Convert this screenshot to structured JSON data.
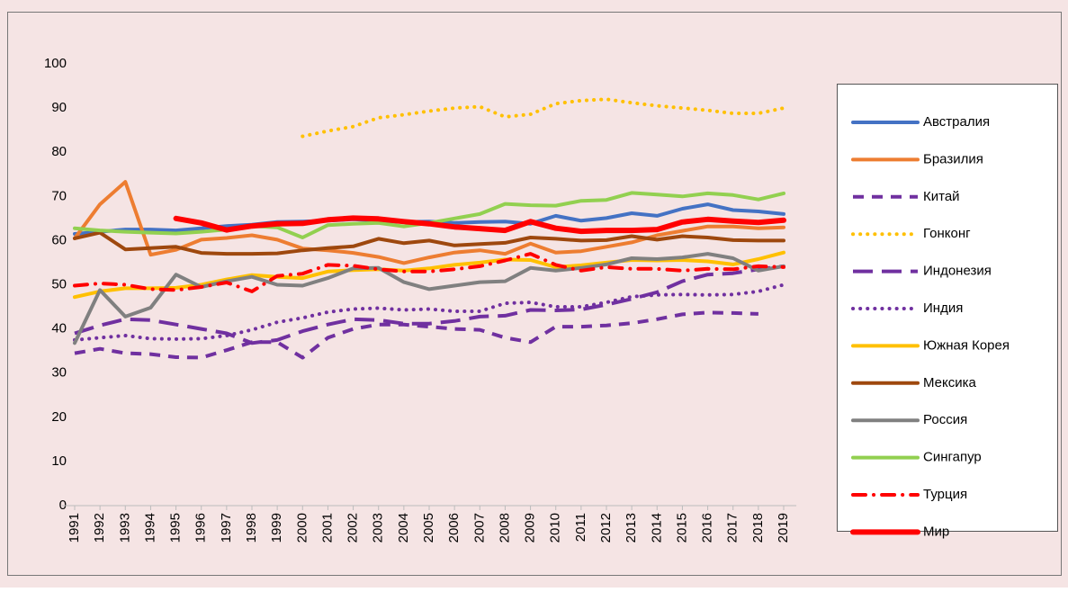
{
  "chart_data": {
    "type": "line",
    "x": [
      1991,
      1992,
      1993,
      1994,
      1995,
      1996,
      1997,
      1998,
      1999,
      2000,
      2001,
      2002,
      2003,
      2004,
      2005,
      2006,
      2007,
      2008,
      2009,
      2010,
      2011,
      2012,
      2013,
      2014,
      2015,
      2016,
      2017,
      2018,
      2019
    ],
    "ylim": [
      0,
      100
    ],
    "yticks": [
      0,
      10,
      20,
      30,
      40,
      50,
      60,
      70,
      80,
      90,
      100
    ],
    "grid": false,
    "legend": "right",
    "series": [
      {
        "name": "Австралия",
        "color": "#4472c4",
        "style": "solid",
        "values": [
          61.5,
          62,
          62.5,
          62.5,
          62.3,
          62.8,
          63.3,
          63.6,
          64.2,
          64.3,
          64.5,
          64.8,
          64.5,
          64.2,
          64.3,
          64,
          64.2,
          64.3,
          63.8,
          65.6,
          64.5,
          65.1,
          66.2,
          65.6,
          67.2,
          68.2,
          66.9,
          66.6,
          66
        ]
      },
      {
        "name": "Бразилия",
        "color": "#ed7d31",
        "style": "solid",
        "values": [
          60.5,
          68.2,
          73.3,
          56.8,
          57.9,
          60.2,
          60.6,
          61.2,
          60.2,
          58.2,
          57.8,
          57.2,
          56.3,
          54.9,
          56.2,
          57.3,
          57.8,
          57,
          59.3,
          57.3,
          57.6,
          58.6,
          59.6,
          61.2,
          62.2,
          63.2,
          63.2,
          62.8,
          63
        ]
      },
      {
        "name": "Китай",
        "color": "#7030a0",
        "style": "dash",
        "values": [
          34.5,
          35.5,
          34.5,
          34.3,
          33.6,
          33.5,
          35.2,
          37,
          37,
          33.5,
          38,
          40,
          41,
          41,
          40.5,
          40,
          39.8,
          38,
          37,
          40.5,
          40.5,
          40.8,
          41.3,
          42.2,
          43.3,
          43.7,
          43.6,
          43.4,
          null
        ]
      },
      {
        "name": "Гонконг",
        "color": "#ffc000",
        "style": "dot",
        "values": [
          null,
          null,
          null,
          null,
          null,
          null,
          null,
          null,
          null,
          83.6,
          84.8,
          85.8,
          87.8,
          88.5,
          89.3,
          90,
          90.3,
          88,
          88.6,
          91,
          91.7,
          92,
          91.2,
          90.5,
          90,
          89.5,
          88.8,
          88.8,
          90
        ]
      },
      {
        "name": "Индонезия",
        "color": "#7030a0",
        "style": "longdash",
        "values": [
          39,
          40.8,
          42.2,
          42,
          41,
          40,
          39,
          36.8,
          37.5,
          39.5,
          41,
          42.2,
          42,
          41.2,
          41.2,
          41.8,
          42.8,
          43,
          44.3,
          44.2,
          44.4,
          45.5,
          46.8,
          48.3,
          50.8,
          52.3,
          52.6,
          53.5,
          54.2
        ]
      },
      {
        "name": "Индия",
        "color": "#7030a0",
        "style": "dot",
        "values": [
          37.5,
          38,
          38.5,
          37.8,
          37.7,
          37.8,
          38.5,
          39.8,
          41.5,
          42.5,
          43.8,
          44.5,
          44.7,
          44.3,
          44.5,
          44,
          44,
          45.8,
          46,
          45,
          45,
          46,
          47.3,
          47.7,
          47.8,
          47.7,
          47.8,
          48.5,
          50
        ]
      },
      {
        "name": "Южная Корея",
        "color": "#ffc000",
        "style": "solid",
        "values": [
          47.2,
          48.5,
          49.2,
          49.2,
          49.3,
          50,
          51.2,
          52.2,
          51.8,
          51.5,
          53,
          53.3,
          53.5,
          53.2,
          53.7,
          54.5,
          55,
          55.7,
          55.6,
          54,
          54.4,
          55,
          55.6,
          55.5,
          55.6,
          55.3,
          54.6,
          55.8,
          57.3
        ]
      },
      {
        "name": "Мексика",
        "color": "#9e480e",
        "style": "solid",
        "values": [
          60.5,
          61.8,
          58,
          58.3,
          58.6,
          57.2,
          57,
          57,
          57.1,
          57.8,
          58.3,
          58.7,
          60.4,
          59.4,
          60,
          58.9,
          59.2,
          59.5,
          60.7,
          60.4,
          60,
          60.1,
          61,
          60.2,
          61,
          60.7,
          60.1,
          60,
          60
        ]
      },
      {
        "name": "Россия",
        "color": "#808080",
        "style": "solid",
        "values": [
          36.8,
          48.8,
          42.8,
          44.8,
          52.3,
          49.5,
          50.8,
          51.8,
          50,
          49.8,
          51.5,
          53.7,
          53.8,
          50.6,
          49,
          49.8,
          50.6,
          50.8,
          53.8,
          53.2,
          53.8,
          54.6,
          56,
          55.8,
          56.2,
          57,
          56,
          53.2,
          54.2
        ]
      },
      {
        "name": "Сингапур",
        "color": "#92d050",
        "style": "solid",
        "values": [
          62.8,
          62.3,
          62,
          61.8,
          61.6,
          62,
          62.5,
          63.3,
          63,
          60.7,
          63.5,
          63.8,
          64,
          63.2,
          64,
          65,
          66,
          68.3,
          68,
          67.9,
          69,
          69.2,
          70.8,
          70.4,
          70,
          70.7,
          70.3,
          69.3,
          70.7
        ]
      },
      {
        "name": "Турция",
        "color": "#ff0000",
        "style": "dashdot",
        "values": [
          49.8,
          50.3,
          50,
          49,
          48.8,
          49.5,
          50.5,
          48.5,
          52,
          52.5,
          54.5,
          54.3,
          53.5,
          53,
          53,
          53.5,
          54.2,
          55.5,
          57,
          54.5,
          53.2,
          54,
          53.6,
          53.6,
          53.2,
          53.6,
          53.5,
          54.2,
          54
        ]
      },
      {
        "name": "Мир",
        "color": "#ff0000",
        "style": "thick",
        "values": [
          null,
          null,
          null,
          null,
          65,
          64,
          62.4,
          63.3,
          63.8,
          63.9,
          64.7,
          65.1,
          64.9,
          64.3,
          63.8,
          63.1,
          62.7,
          62.3,
          64.3,
          62.8,
          62.1,
          62.3,
          62.3,
          62.5,
          64.2,
          64.8,
          64.4,
          64.1,
          64.6
        ]
      }
    ]
  }
}
